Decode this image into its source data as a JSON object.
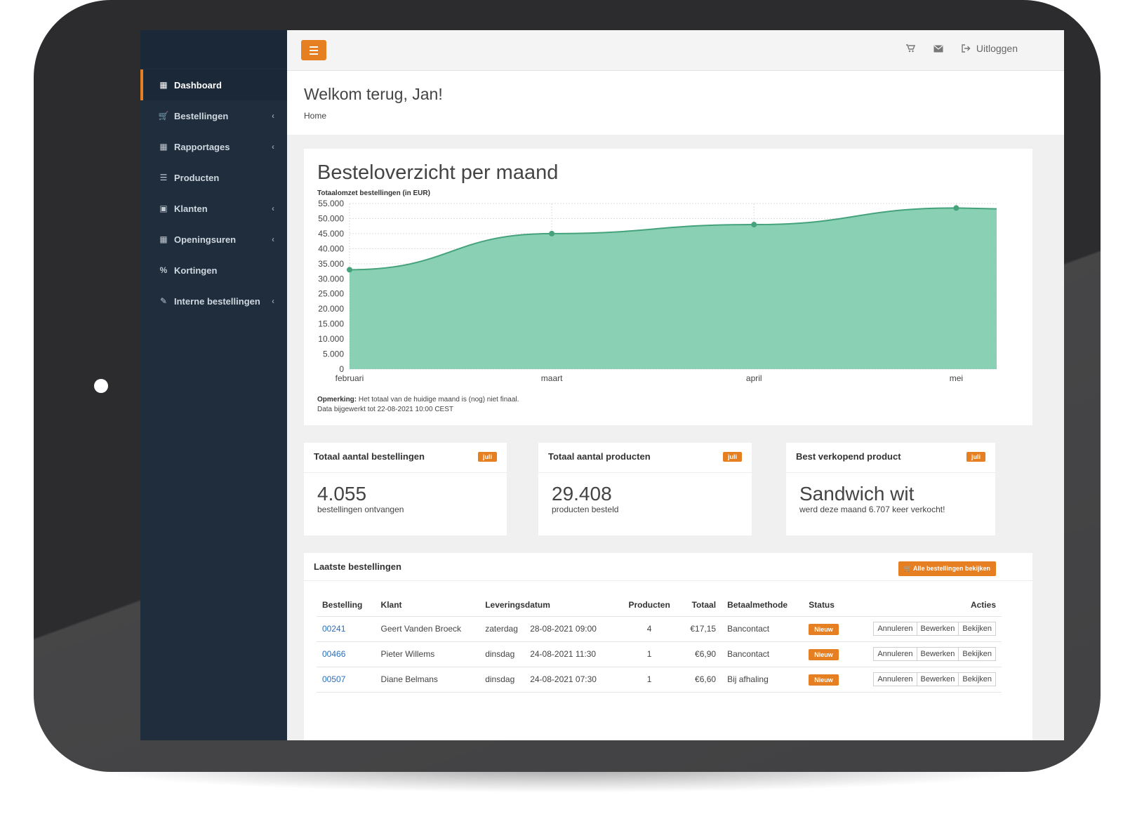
{
  "sidebar": {
    "items": [
      {
        "label": "Dashboard",
        "icon": "dashboard-icon",
        "active": true,
        "has_submenu": false
      },
      {
        "label": "Bestellingen",
        "icon": "cart-icon",
        "active": false,
        "has_submenu": true
      },
      {
        "label": "Rapportages",
        "icon": "table-icon",
        "active": false,
        "has_submenu": true
      },
      {
        "label": "Producten",
        "icon": "list-icon",
        "active": false,
        "has_submenu": false
      },
      {
        "label": "Klanten",
        "icon": "contact-icon",
        "active": false,
        "has_submenu": true
      },
      {
        "label": "Openingsuren",
        "icon": "calendar-icon",
        "active": false,
        "has_submenu": true
      },
      {
        "label": "Kortingen",
        "icon": "percent-icon",
        "active": false,
        "has_submenu": false
      },
      {
        "label": "Interne bestellingen",
        "icon": "edit-icon",
        "active": false,
        "has_submenu": true
      }
    ]
  },
  "topbar": {
    "logout_label": "Uitloggen"
  },
  "header": {
    "title": "Welkom terug, Jan!",
    "breadcrumb": "Home"
  },
  "chart": {
    "title": "Besteloverzicht per maand",
    "note_label": "Opmerking:",
    "note_text": "Het totaal van de huidige maand is (nog) niet finaal.",
    "updated": "Data bijgewerkt tot 22-08-2021 10:00 CEST"
  },
  "chart_data": {
    "type": "area",
    "title": "Besteloverzicht per maand",
    "ylabel": "Totaalomzet bestellingen (in EUR)",
    "xlabel": "",
    "categories": [
      "februari",
      "maart",
      "april",
      "mei"
    ],
    "values": [
      33000,
      45000,
      48000,
      53500
    ],
    "ylim": [
      0,
      55000
    ],
    "yticks": [
      "55.000",
      "50.000",
      "45.000",
      "40.000",
      "35.000",
      "30.000",
      "25.000",
      "20.000",
      "15.000",
      "10.000",
      "5.000",
      "0"
    ],
    "grid": true,
    "color": "#7dcbad",
    "line_color": "#45a37c"
  },
  "stats": [
    {
      "title": "Totaal aantal bestellingen",
      "badge": "juli",
      "value": "4.055",
      "caption": "bestellingen ontvangen"
    },
    {
      "title": "Totaal aantal producten",
      "badge": "juli",
      "value": "29.408",
      "caption": "producten besteld"
    },
    {
      "title": "Best verkopend product",
      "badge": "juli",
      "value": "Sandwich wit",
      "caption": "werd deze maand 6.707 keer verkocht!"
    }
  ],
  "orders": {
    "title": "Laatste bestellingen",
    "view_all_label": "Alle bestellingen bekijken",
    "columns": [
      "Bestelling",
      "Klant",
      "Leveringsdatum",
      "Producten",
      "Totaal",
      "Betaalmethode",
      "Status",
      "Acties"
    ],
    "rows": [
      {
        "id": "00241",
        "klant": "Geert Vanden Broeck",
        "dag": "zaterdag",
        "datum": "28-08-2021 09:00",
        "producten": "4",
        "totaal": "€17,15",
        "betaal": "Bancontact",
        "status": "Nieuw"
      },
      {
        "id": "00466",
        "klant": "Pieter Willems",
        "dag": "dinsdag",
        "datum": "24-08-2021 11:30",
        "producten": "1",
        "totaal": "€6,90",
        "betaal": "Bancontact",
        "status": "Nieuw"
      },
      {
        "id": "00507",
        "klant": "Diane Belmans",
        "dag": "dinsdag",
        "datum": "24-08-2021 07:30",
        "producten": "1",
        "totaal": "€6,60",
        "betaal": "Bij afhaling",
        "status": "Nieuw"
      }
    ],
    "actions": [
      "Annuleren",
      "Bewerken",
      "Bekijken"
    ]
  },
  "colors": {
    "accent": "#e67e22",
    "sidebar": "#1f2d3d",
    "link": "#2a6ebb"
  }
}
